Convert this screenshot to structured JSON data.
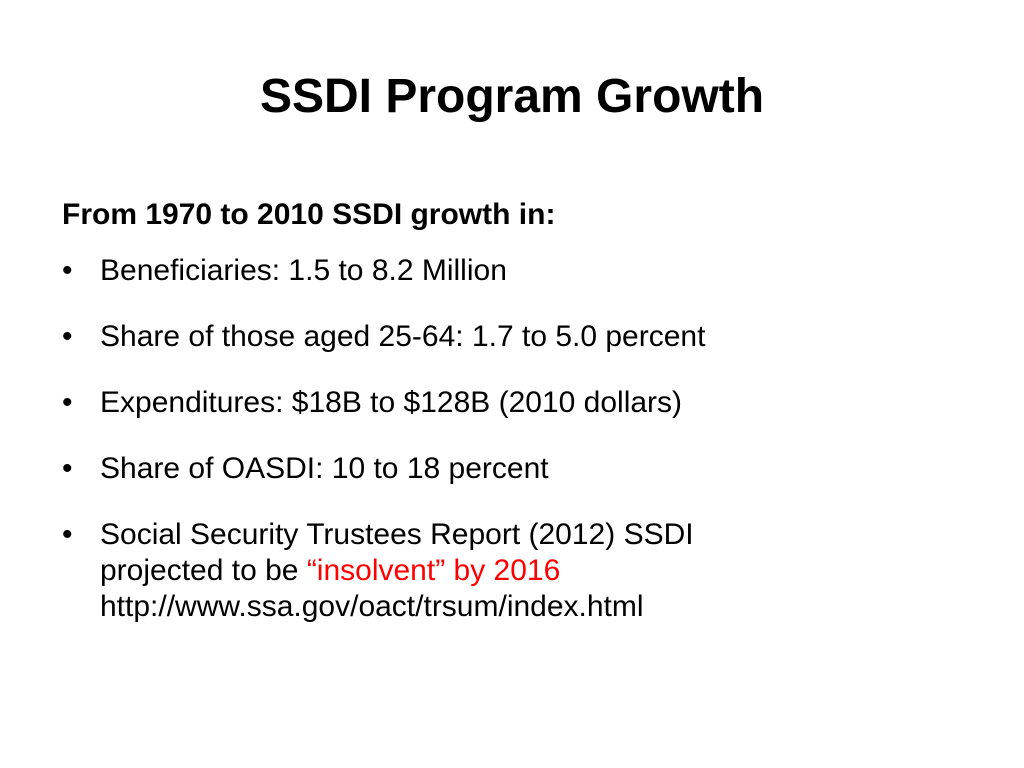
{
  "slide": {
    "title": "SSDI Program Growth",
    "heading": "From 1970 to 2010 SSDI growth in:",
    "bullet_glyph": "•",
    "bullets": [
      "Beneficiaries: 1.5 to 8.2 Million",
      "Share of those aged 25-64: 1.7 to 5.0 percent",
      "Expenditures: $18B to $128B (2010 dollars)",
      "Share of OASDI: 10 to 18 percent"
    ],
    "last_bullet": {
      "line1": "Social Security Trustees Report (2012) SSDI",
      "line2_prefix": "projected to be ",
      "line2_highlight": "“insolvent” by 2016",
      "line3": "http://www.ssa.gov/oact/trsum/index.html"
    },
    "highlight_color": "#ff0000"
  }
}
